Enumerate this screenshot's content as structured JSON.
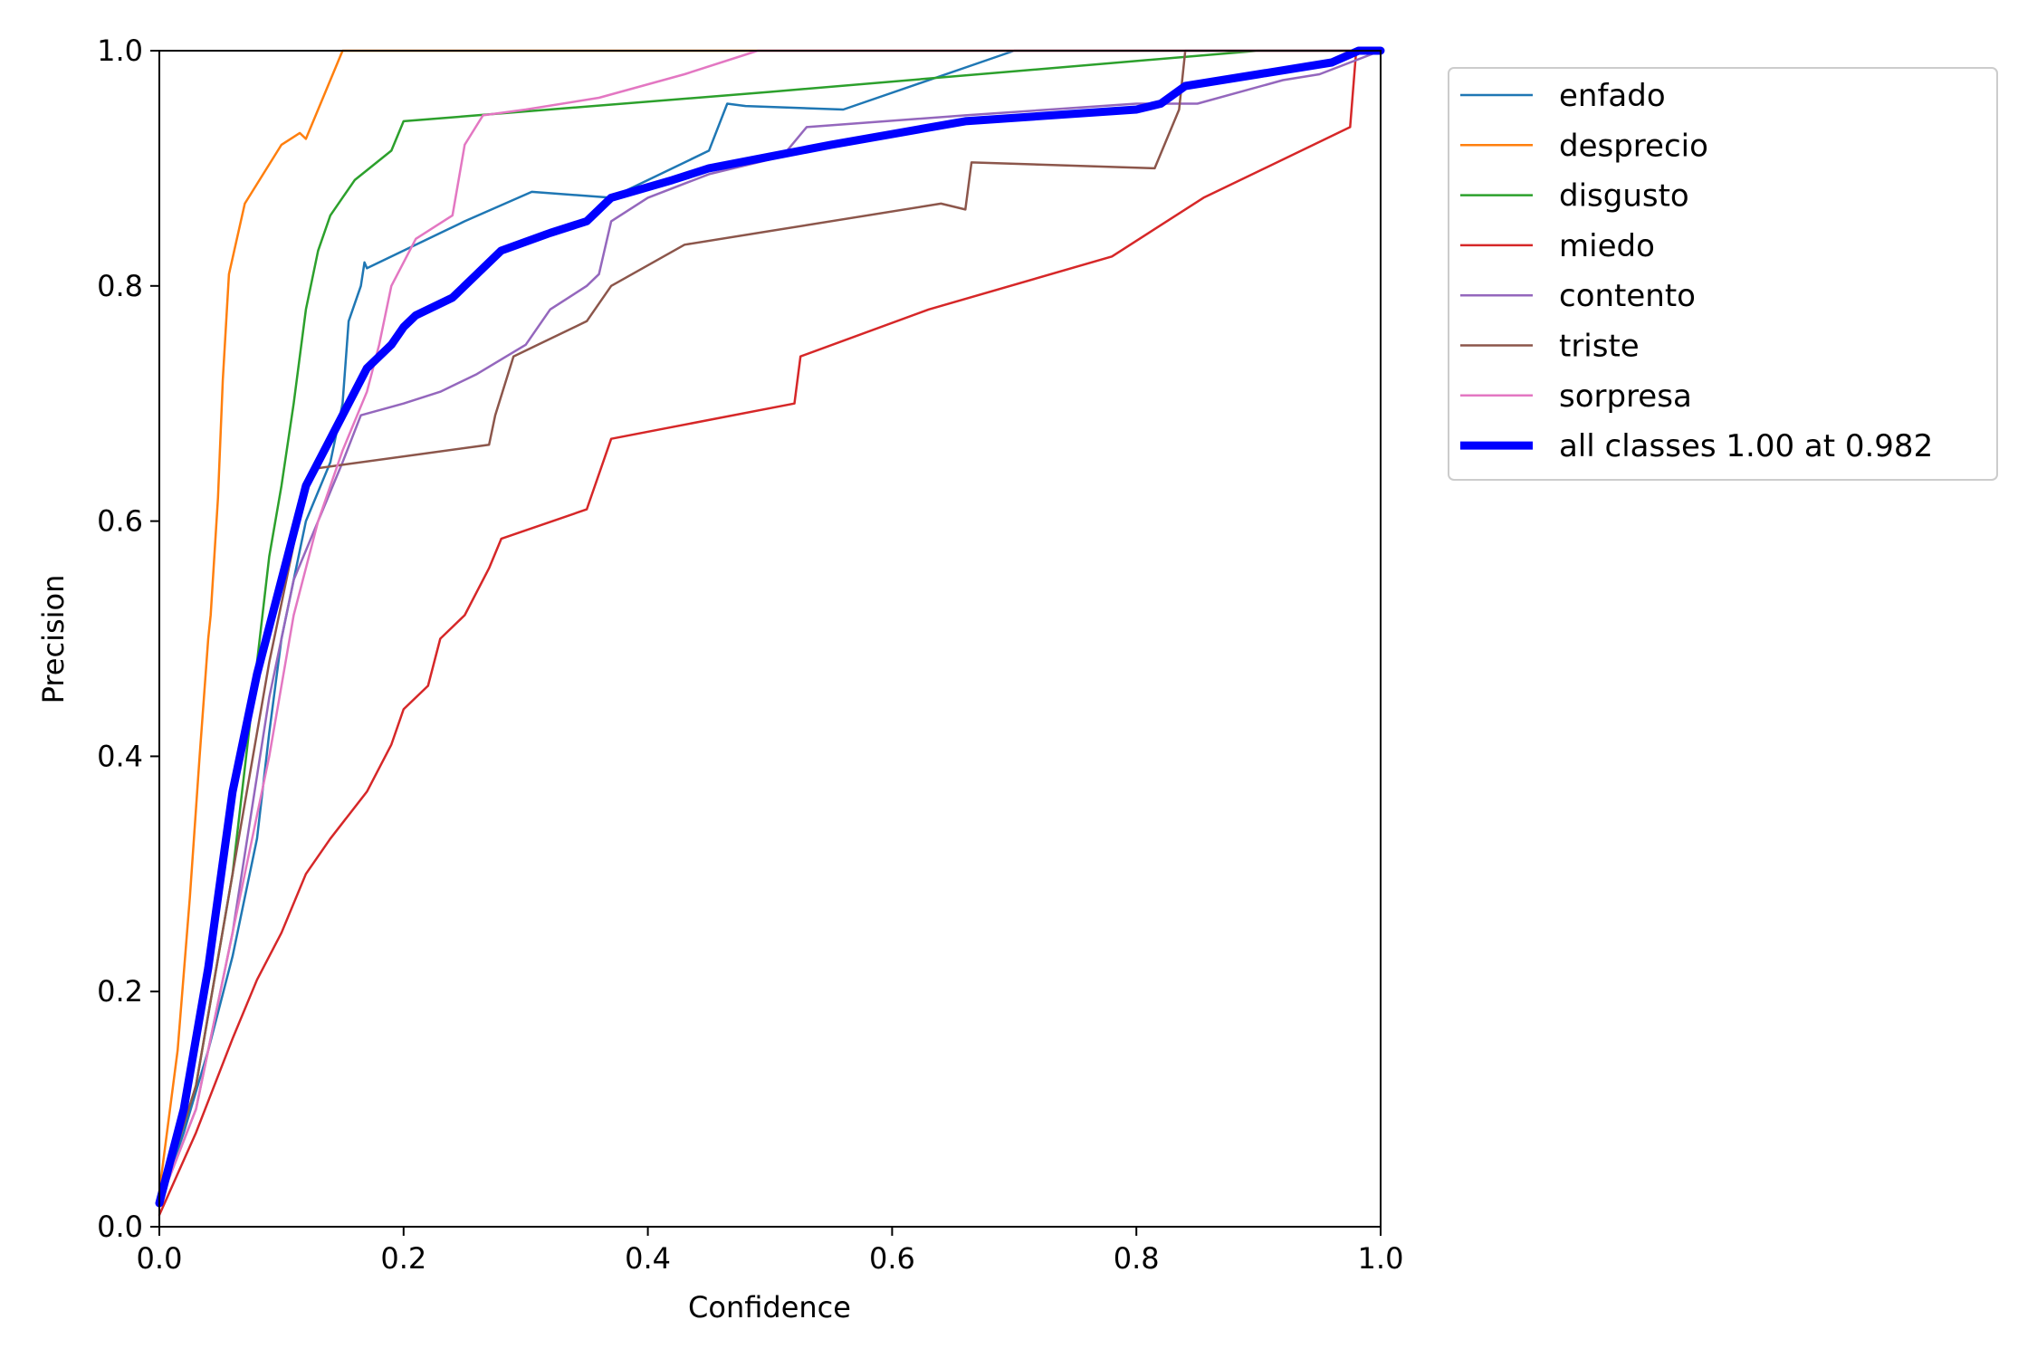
{
  "chart_data": {
    "type": "line",
    "xlabel": "Confidence",
    "ylabel": "Precision",
    "xlim": [
      0,
      1
    ],
    "ylim": [
      0,
      1
    ],
    "xticks": [
      "0.0",
      "0.2",
      "0.4",
      "0.6",
      "0.8",
      "1.0"
    ],
    "yticks": [
      "0.0",
      "0.2",
      "0.4",
      "0.6",
      "0.8",
      "1.0"
    ],
    "grid": false,
    "legend_position": "outside-top-right",
    "series": [
      {
        "name": "enfado",
        "color": "#1f77b4",
        "x": [
          0,
          0.02,
          0.04,
          0.06,
          0.08,
          0.09,
          0.1,
          0.12,
          0.14,
          0.15,
          0.155,
          0.165,
          0.168,
          0.17,
          0.25,
          0.305,
          0.37,
          0.45,
          0.465,
          0.48,
          0.56,
          0.7,
          1.0
        ],
        "y": [
          0.02,
          0.08,
          0.15,
          0.23,
          0.33,
          0.42,
          0.5,
          0.6,
          0.65,
          0.7,
          0.77,
          0.8,
          0.82,
          0.815,
          0.855,
          0.88,
          0.875,
          0.915,
          0.955,
          0.953,
          0.95,
          1.0,
          1.0
        ]
      },
      {
        "name": "desprecio",
        "color": "#ff7f0e",
        "x": [
          0,
          0.015,
          0.025,
          0.033,
          0.04,
          0.042,
          0.048,
          0.052,
          0.057,
          0.07,
          0.1,
          0.115,
          0.12,
          0.15,
          1.0
        ],
        "y": [
          0.03,
          0.15,
          0.28,
          0.4,
          0.5,
          0.52,
          0.62,
          0.72,
          0.81,
          0.87,
          0.92,
          0.93,
          0.925,
          1.0,
          1.0
        ]
      },
      {
        "name": "disgusto",
        "color": "#2ca02c",
        "x": [
          0,
          0.03,
          0.06,
          0.08,
          0.09,
          0.1,
          0.11,
          0.12,
          0.13,
          0.14,
          0.16,
          0.19,
          0.2,
          0.5,
          0.9,
          1.0
        ],
        "y": [
          0.02,
          0.12,
          0.3,
          0.48,
          0.57,
          0.63,
          0.7,
          0.78,
          0.83,
          0.86,
          0.89,
          0.915,
          0.94,
          0.965,
          1.0,
          1.0
        ]
      },
      {
        "name": "miedo",
        "color": "#d62728",
        "x": [
          0,
          0.03,
          0.06,
          0.08,
          0.1,
          0.12,
          0.14,
          0.17,
          0.19,
          0.2,
          0.22,
          0.23,
          0.25,
          0.27,
          0.28,
          0.35,
          0.37,
          0.52,
          0.525,
          0.63,
          0.78,
          0.855,
          0.975,
          0.98,
          1.0
        ],
        "y": [
          0.01,
          0.08,
          0.16,
          0.21,
          0.25,
          0.3,
          0.33,
          0.37,
          0.41,
          0.44,
          0.46,
          0.5,
          0.52,
          0.56,
          0.585,
          0.61,
          0.67,
          0.7,
          0.74,
          0.78,
          0.825,
          0.875,
          0.935,
          1.0,
          1.0
        ]
      },
      {
        "name": "contento",
        "color": "#9467bd",
        "x": [
          0,
          0.03,
          0.06,
          0.09,
          0.11,
          0.13,
          0.15,
          0.165,
          0.2,
          0.23,
          0.26,
          0.3,
          0.32,
          0.35,
          0.36,
          0.37,
          0.4,
          0.45,
          0.51,
          0.53,
          0.66,
          0.8,
          0.85,
          0.92,
          0.95,
          1.0
        ],
        "y": [
          0.02,
          0.1,
          0.25,
          0.45,
          0.55,
          0.6,
          0.65,
          0.69,
          0.7,
          0.71,
          0.725,
          0.75,
          0.78,
          0.8,
          0.81,
          0.855,
          0.875,
          0.895,
          0.91,
          0.935,
          0.945,
          0.955,
          0.955,
          0.975,
          0.98,
          1.0
        ]
      },
      {
        "name": "triste",
        "color": "#8c564b",
        "x": [
          0,
          0.03,
          0.06,
          0.09,
          0.12,
          0.13,
          0.27,
          0.275,
          0.29,
          0.35,
          0.37,
          0.43,
          0.64,
          0.66,
          0.665,
          0.815,
          0.835,
          0.84,
          1.0
        ],
        "y": [
          0.02,
          0.12,
          0.3,
          0.48,
          0.63,
          0.645,
          0.665,
          0.69,
          0.74,
          0.77,
          0.8,
          0.835,
          0.87,
          0.865,
          0.905,
          0.9,
          0.95,
          1.0,
          1.0
        ]
      },
      {
        "name": "sorpresa",
        "color": "#e377c2",
        "x": [
          0,
          0.03,
          0.06,
          0.09,
          0.11,
          0.13,
          0.15,
          0.17,
          0.18,
          0.19,
          0.21,
          0.24,
          0.25,
          0.265,
          0.3,
          0.36,
          0.43,
          0.49,
          1.0
        ],
        "y": [
          0.02,
          0.1,
          0.25,
          0.4,
          0.52,
          0.6,
          0.66,
          0.71,
          0.75,
          0.8,
          0.84,
          0.86,
          0.92,
          0.945,
          0.95,
          0.96,
          0.98,
          1.0,
          1.0
        ]
      },
      {
        "name": "all classes 1.00 at 0.982",
        "color": "#0000ff",
        "bold": true,
        "x": [
          0,
          0.02,
          0.04,
          0.06,
          0.08,
          0.1,
          0.11,
          0.12,
          0.14,
          0.155,
          0.17,
          0.19,
          0.2,
          0.21,
          0.24,
          0.25,
          0.26,
          0.28,
          0.32,
          0.35,
          0.37,
          0.42,
          0.45,
          0.5,
          0.55,
          0.66,
          0.8,
          0.82,
          0.84,
          0.9,
          0.96,
          0.982,
          1.0
        ],
        "y": [
          0.02,
          0.1,
          0.22,
          0.37,
          0.47,
          0.55,
          0.59,
          0.63,
          0.67,
          0.7,
          0.73,
          0.75,
          0.765,
          0.775,
          0.79,
          0.8,
          0.81,
          0.83,
          0.845,
          0.855,
          0.875,
          0.89,
          0.9,
          0.91,
          0.92,
          0.94,
          0.95,
          0.955,
          0.97,
          0.98,
          0.99,
          1.0,
          1.0
        ]
      }
    ]
  }
}
